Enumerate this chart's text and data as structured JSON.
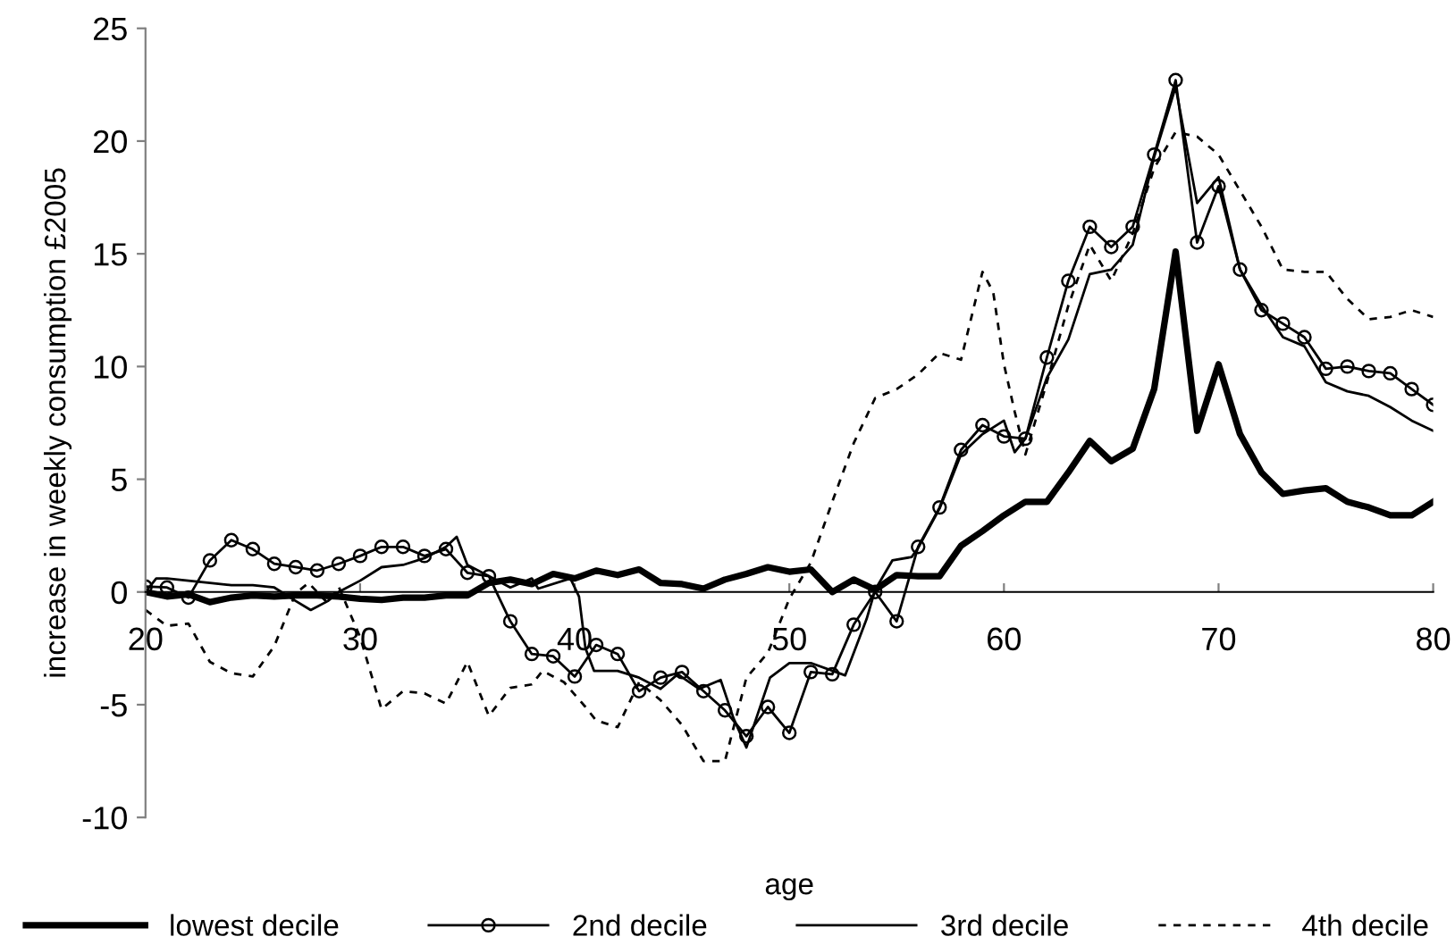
{
  "chart_data": {
    "type": "line",
    "xlabel": "age",
    "ylabel": "increase in weekly consumption £2005",
    "xlim": [
      20,
      80
    ],
    "xticks": [
      20,
      30,
      40,
      50,
      60,
      70,
      80
    ],
    "ylim": [
      -10,
      25
    ],
    "yticks": [
      -10,
      -5,
      0,
      5,
      10,
      15,
      20,
      25
    ],
    "grid": false,
    "legend": "bottom",
    "series": [
      {
        "name": "lowest decile",
        "color": "#000000",
        "line_style": "solid",
        "marker": "none",
        "x": [
          20,
          21,
          22,
          23,
          24,
          25,
          26,
          27,
          28,
          29,
          30,
          31,
          32,
          33,
          34,
          35,
          36,
          37,
          38,
          39,
          40,
          41,
          42,
          43,
          44,
          45,
          46,
          47,
          48,
          49,
          50,
          51,
          52,
          53,
          54,
          55,
          56,
          57,
          58,
          59,
          60,
          61,
          62,
          63,
          64,
          65,
          66,
          67,
          68,
          69,
          70,
          71,
          72,
          73,
          74,
          75,
          76,
          77,
          78,
          79,
          80
        ],
        "values": [
          0,
          -0.2,
          -0.1,
          -0.45,
          -0.25,
          -0.15,
          -0.2,
          -0.15,
          -0.15,
          -0.2,
          -0.3,
          -0.35,
          -0.25,
          -0.25,
          -0.15,
          -0.15,
          0.4,
          0.55,
          0.35,
          0.8,
          0.6,
          0.95,
          0.75,
          1.0,
          0.4,
          0.35,
          0.15,
          0.55,
          0.8,
          1.1,
          0.9,
          1.0,
          0,
          0.55,
          0.1,
          0.75,
          0.7,
          0.7,
          2.05,
          2.7,
          3.4,
          4.0,
          4.0,
          5.3,
          6.7,
          5.8,
          6.35,
          9.0,
          15.1,
          7.15,
          10.1,
          7.0,
          5.3,
          4.35,
          4.5,
          4.6,
          4.0,
          3.75,
          3.4,
          3.4,
          4.0
        ]
      },
      {
        "name": "2nd decile",
        "color": "#000000",
        "line_style": "solid",
        "marker": "circle",
        "x": [
          20,
          21,
          22,
          23,
          24,
          25,
          26,
          27,
          28,
          29,
          30,
          31,
          32,
          33,
          34,
          35,
          36,
          37,
          38,
          39,
          40,
          41,
          42,
          43,
          44,
          45,
          46,
          47,
          48,
          49,
          50,
          51,
          52,
          53,
          54,
          55,
          56,
          57,
          58,
          59,
          60,
          61,
          62,
          63,
          64,
          65,
          66,
          67,
          68,
          69,
          70,
          71,
          72,
          73,
          74,
          75,
          76,
          77,
          78,
          79,
          80
        ],
        "values": [
          0.24,
          0.2,
          -0.25,
          1.4,
          2.3,
          1.9,
          1.25,
          1.1,
          0.95,
          1.25,
          1.6,
          2.0,
          2.0,
          1.6,
          1.9,
          0.85,
          0.7,
          -1.3,
          -2.75,
          -2.85,
          -3.75,
          -2.35,
          -2.75,
          -4.4,
          -3.8,
          -3.55,
          -4.4,
          -5.25,
          -6.4,
          -5.1,
          -6.25,
          -3.55,
          -3.65,
          -1.45,
          0,
          -1.3,
          2.0,
          3.75,
          6.3,
          7.4,
          6.9,
          6.8,
          10.4,
          13.8,
          16.2,
          15.3,
          16.2,
          19.4,
          22.7,
          15.5,
          18.0,
          14.3,
          12.5,
          11.9,
          11.3,
          9.9,
          10.0,
          9.8,
          9.7,
          9.0,
          8.3
        ]
      },
      {
        "name": "3rd decile",
        "color": "#000000",
        "line_style": "solid",
        "marker": "none",
        "x": [
          20,
          20.5,
          21,
          22,
          23,
          24,
          25,
          26,
          27,
          27.7,
          28.5,
          29,
          30,
          31,
          32,
          33,
          34,
          34.5,
          35,
          36,
          37,
          38,
          38.3,
          39.8,
          40.2,
          40.5,
          40.9,
          42,
          43,
          44,
          44.8,
          45.8,
          46.8,
          47.4,
          48,
          49.1,
          50,
          51,
          52.6,
          53.6,
          54,
          54.8,
          55.7,
          56,
          57,
          58,
          59,
          60,
          60.5,
          61,
          62,
          63,
          64,
          65,
          66,
          67,
          68,
          69,
          70,
          71,
          72,
          73,
          74,
          75,
          76,
          77,
          78,
          79,
          80
        ],
        "values": [
          0,
          0.6,
          0.6,
          0.5,
          0.4,
          0.3,
          0.3,
          0.2,
          -0.4,
          -0.8,
          -0.4,
          0,
          0.5,
          1.1,
          1.2,
          1.5,
          2.0,
          2.45,
          1.2,
          0.7,
          0.2,
          0.6,
          0.15,
          0.6,
          -0.2,
          -2.5,
          -3.5,
          -3.5,
          -3.8,
          -4.3,
          -3.65,
          -4.3,
          -3.9,
          -5.6,
          -6.9,
          -3.8,
          -3.15,
          -3.15,
          -3.7,
          -1.2,
          0.1,
          1.4,
          1.55,
          1.95,
          3.7,
          6.1,
          7.0,
          7.6,
          6.2,
          6.8,
          9.5,
          11.2,
          14.1,
          14.3,
          15.4,
          19.3,
          22.4,
          17.25,
          18.4,
          14.3,
          12.7,
          11.3,
          10.9,
          9.3,
          8.9,
          8.7,
          8.2,
          7.6,
          7.15
        ]
      },
      {
        "name": "4th decile",
        "color": "#000000",
        "line_style": "dashed",
        "marker": "none",
        "x": [
          20,
          21,
          22,
          23,
          24,
          25,
          26,
          27,
          27.6,
          28.5,
          29,
          30,
          31,
          32,
          33,
          34,
          35,
          36,
          37,
          38,
          38.5,
          39.5,
          40.5,
          41,
          42,
          43,
          44,
          45,
          46,
          47,
          48,
          49,
          50,
          51,
          52,
          53,
          54,
          55,
          56,
          57,
          58,
          59,
          59.5,
          60,
          60.5,
          61,
          62,
          63,
          64,
          65,
          66,
          67,
          68,
          69,
          70,
          71,
          72,
          73,
          74,
          75,
          76,
          77,
          78,
          79,
          80
        ],
        "values": [
          -0.8,
          -1.5,
          -1.4,
          -3.1,
          -3.6,
          -3.75,
          -2.4,
          -0.05,
          0.4,
          -0.5,
          0.24,
          -2.0,
          -5.2,
          -4.4,
          -4.5,
          -4.95,
          -3.1,
          -5.5,
          -4.25,
          -4.1,
          -3.5,
          -4.0,
          -5.1,
          -5.7,
          -6.0,
          -4.0,
          -4.8,
          -5.9,
          -7.5,
          -7.5,
          -3.8,
          -2.7,
          -0.3,
          1.3,
          4.0,
          6.6,
          8.6,
          9.0,
          9.65,
          10.6,
          10.3,
          14.2,
          13.3,
          10.1,
          8.0,
          6.1,
          9.3,
          12.7,
          15.4,
          13.8,
          15.9,
          18.8,
          20.4,
          20.2,
          19.4,
          17.8,
          16.2,
          14.3,
          14.2,
          14.2,
          13.0,
          12.1,
          12.2,
          12.5,
          12.2
        ]
      }
    ]
  }
}
